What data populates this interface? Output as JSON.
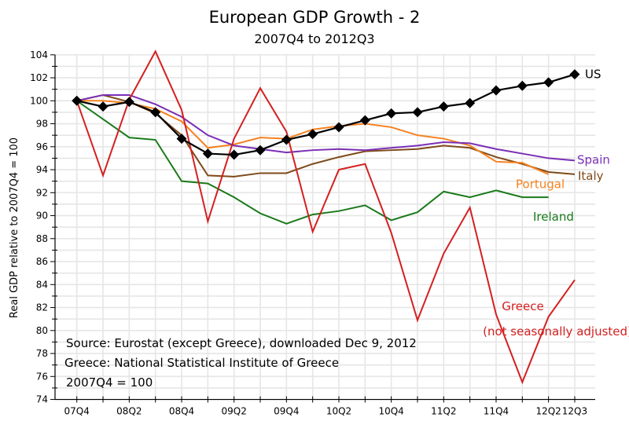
{
  "chart_data": {
    "type": "line",
    "title": "European GDP Growth - 2",
    "subtitle": "2007Q4 to 2012Q3",
    "xlabel": "",
    "ylabel": "Real GDP relative to 2007Q4 = 100",
    "ylim": [
      74,
      104
    ],
    "yticks": [
      74,
      76,
      78,
      80,
      82,
      84,
      86,
      88,
      90,
      92,
      94,
      96,
      98,
      100,
      102,
      104
    ],
    "grid": true,
    "x": [
      "07Q4",
      "08Q1",
      "08Q2",
      "08Q3",
      "08Q4",
      "09Q1",
      "09Q2",
      "09Q3",
      "09Q4",
      "10Q1",
      "10Q2",
      "10Q3",
      "10Q4",
      "11Q1",
      "11Q2",
      "11Q3",
      "11Q4",
      "12Q1",
      "12Q2",
      "12Q3"
    ],
    "xtick_labels": [
      {
        "index": 0,
        "label": "07Q4"
      },
      {
        "index": 2,
        "label": "08Q2"
      },
      {
        "index": 4,
        "label": "08Q4"
      },
      {
        "index": 6,
        "label": "09Q2"
      },
      {
        "index": 8,
        "label": "09Q4"
      },
      {
        "index": 10,
        "label": "10Q2"
      },
      {
        "index": 12,
        "label": "10Q4"
      },
      {
        "index": 14,
        "label": "11Q2"
      },
      {
        "index": 16,
        "label": "11Q4"
      },
      {
        "index": 18,
        "label": "12Q2"
      },
      {
        "index": 19,
        "label": "12Q3"
      }
    ],
    "series": [
      {
        "name": "US",
        "label": "US",
        "color": "#000000",
        "marker": "diamond",
        "values": [
          100,
          99.5,
          99.9,
          99.0,
          96.7,
          95.4,
          95.3,
          95.7,
          96.6,
          97.1,
          97.7,
          98.3,
          98.9,
          99.0,
          99.5,
          99.8,
          100.9,
          101.3,
          101.6,
          102.3
        ]
      },
      {
        "name": "Spain",
        "label": "Spain",
        "color": "#7b2fb5",
        "marker": "none",
        "values": [
          100,
          100.5,
          100.5,
          99.7,
          98.6,
          97.0,
          96.1,
          95.8,
          95.5,
          95.7,
          95.8,
          95.7,
          95.9,
          96.1,
          96.4,
          96.3,
          95.8,
          95.4,
          95.0,
          94.8
        ]
      },
      {
        "name": "Italy",
        "label": "Italy",
        "color": "#7f4a1a",
        "marker": "none",
        "values": [
          100,
          100.5,
          99.9,
          98.9,
          97.0,
          93.5,
          93.4,
          93.7,
          93.7,
          94.5,
          95.1,
          95.6,
          95.7,
          95.8,
          96.1,
          95.9,
          95.1,
          94.5,
          93.8,
          93.6
        ]
      },
      {
        "name": "Portugal",
        "label": "Portugal",
        "color": "#f58220",
        "marker": "none",
        "values": [
          100,
          100.0,
          99.8,
          99.3,
          98.2,
          95.9,
          96.2,
          96.8,
          96.7,
          97.5,
          97.8,
          98.0,
          97.7,
          97.0,
          96.7,
          96.1,
          94.7,
          94.6,
          93.6,
          null
        ]
      },
      {
        "name": "Ireland",
        "label": "Ireland",
        "color": "#1a7a1a",
        "marker": "none",
        "values": [
          100,
          98.4,
          96.8,
          96.6,
          93.0,
          92.8,
          91.6,
          90.2,
          89.3,
          90.1,
          90.4,
          90.9,
          89.6,
          90.3,
          92.1,
          91.6,
          92.2,
          91.6,
          91.6,
          null
        ]
      },
      {
        "name": "Greece",
        "label": "Greece",
        "sublabel": "(not seasonally adjusted)",
        "color": "#d42020",
        "marker": "none",
        "values": [
          100,
          93.5,
          100.1,
          104.3,
          99.2,
          89.5,
          96.7,
          101.1,
          97.3,
          88.6,
          94.0,
          94.5,
          88.5,
          80.9,
          86.7,
          90.7,
          81.4,
          75.5,
          81.2,
          84.4
        ]
      }
    ],
    "annotations": [
      "Source:  Eurostat (except Greece), downloaded Dec 9, 2012",
      "Greece:  National Statistical Institute of Greece",
      "2007Q4 = 100"
    ],
    "legend": "inline labels at right end of each series"
  }
}
